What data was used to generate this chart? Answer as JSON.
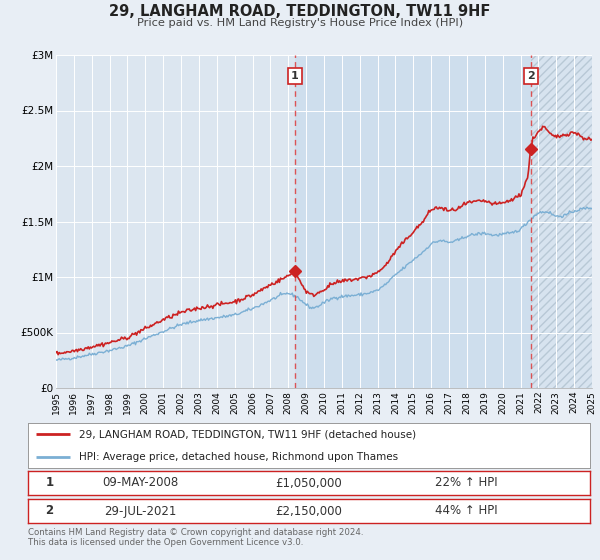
{
  "title": "29, LANGHAM ROAD, TEDDINGTON, TW11 9HF",
  "subtitle": "Price paid vs. HM Land Registry's House Price Index (HPI)",
  "bg_color": "#e8eef5",
  "plot_bg_color": "#dce6f0",
  "grid_color": "#ffffff",
  "xmin": 1995,
  "xmax": 2025,
  "ymin": 0,
  "ymax": 3000000,
  "yticks": [
    0,
    500000,
    1000000,
    1500000,
    2000000,
    2500000,
    3000000
  ],
  "ytick_labels": [
    "£0",
    "£500K",
    "£1M",
    "£1.5M",
    "£2M",
    "£2.5M",
    "£3M"
  ],
  "xticks": [
    1995,
    1996,
    1997,
    1998,
    1999,
    2000,
    2001,
    2002,
    2003,
    2004,
    2005,
    2006,
    2007,
    2008,
    2009,
    2010,
    2011,
    2012,
    2013,
    2014,
    2015,
    2016,
    2017,
    2018,
    2019,
    2020,
    2021,
    2022,
    2023,
    2024,
    2025
  ],
  "sale1_date": 2008.36,
  "sale1_price": 1050000,
  "sale1_label": "1",
  "sale2_date": 2021.57,
  "sale2_price": 2150000,
  "sale2_label": "2",
  "legend_line1": "29, LANGHAM ROAD, TEDDINGTON, TW11 9HF (detached house)",
  "legend_line2": "HPI: Average price, detached house, Richmond upon Thames",
  "table_row1_num": "1",
  "table_row1_date": "09-MAY-2008",
  "table_row1_price": "£1,050,000",
  "table_row1_hpi": "22% ↑ HPI",
  "table_row2_num": "2",
  "table_row2_date": "29-JUL-2021",
  "table_row2_price": "£2,150,000",
  "table_row2_hpi": "44% ↑ HPI",
  "footer": "Contains HM Land Registry data © Crown copyright and database right 2024.\nThis data is licensed under the Open Government Licence v3.0.",
  "hpi_color": "#7bafd4",
  "price_color": "#cc2222",
  "dashed_line_color": "#dd4444",
  "shade_between_color": "#ccdded",
  "hatch_color": "#c0ccd8"
}
